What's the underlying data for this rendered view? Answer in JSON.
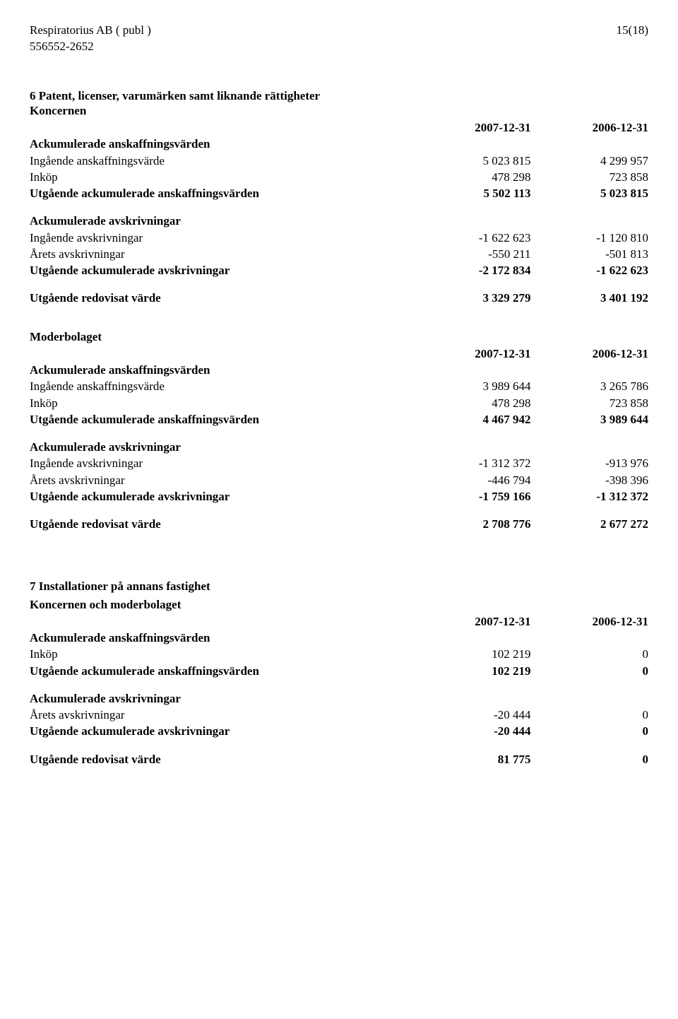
{
  "header": {
    "company_name": "Respiratorius AB ( publ )",
    "org_number": "556552-2652",
    "page_number": "15(18)"
  },
  "sections": [
    {
      "title": "6 Patent, licenser, varumärken samt liknande rättigheter",
      "groups": [
        {
          "unit_label": "Koncernen",
          "col1_header": "2007-12-31",
          "col2_header": "2006-12-31",
          "blocks": [
            {
              "heading": "Ackumulerade anskaffningsvärden",
              "rows": [
                {
                  "label": "Ingående anskaffningsvärde",
                  "c1": "5 023 815",
                  "c2": "4 299 957",
                  "bold": false
                },
                {
                  "label": "Inköp",
                  "c1": "478 298",
                  "c2": "723 858",
                  "bold": false
                },
                {
                  "label": "Utgående ackumulerade anskaffningsvärden",
                  "c1": "5 502 113",
                  "c2": "5 023 815",
                  "bold": true
                }
              ]
            },
            {
              "heading": "Ackumulerade avskrivningar",
              "rows": [
                {
                  "label": "Ingående avskrivningar",
                  "c1": "-1 622 623",
                  "c2": "-1 120 810",
                  "bold": false
                },
                {
                  "label": "Årets avskrivningar",
                  "c1": "-550 211",
                  "c2": "-501 813",
                  "bold": false
                },
                {
                  "label": "Utgående ackumulerade avskrivningar",
                  "c1": "-2 172 834",
                  "c2": "-1 622 623",
                  "bold": true
                }
              ]
            }
          ],
          "total": {
            "label": "Utgående redovisat värde",
            "c1": "3 329 279",
            "c2": "3 401 192"
          }
        },
        {
          "unit_label": "Moderbolaget",
          "col1_header": "2007-12-31",
          "col2_header": "2006-12-31",
          "blocks": [
            {
              "heading": "Ackumulerade anskaffningsvärden",
              "rows": [
                {
                  "label": "Ingående anskaffningsvärde",
                  "c1": "3 989 644",
                  "c2": "3 265 786",
                  "bold": false
                },
                {
                  "label": "Inköp",
                  "c1": "478 298",
                  "c2": "723 858",
                  "bold": false
                },
                {
                  "label": "Utgående ackumulerade anskaffningsvärden",
                  "c1": "4 467 942",
                  "c2": "3 989 644",
                  "bold": true
                }
              ]
            },
            {
              "heading": "Ackumulerade avskrivningar",
              "rows": [
                {
                  "label": "Ingående avskrivningar",
                  "c1": "-1 312 372",
                  "c2": "-913 976",
                  "bold": false
                },
                {
                  "label": "Årets avskrivningar",
                  "c1": "-446 794",
                  "c2": "-398 396",
                  "bold": false
                },
                {
                  "label": "Utgående ackumulerade avskrivningar",
                  "c1": "-1 759 166",
                  "c2": "-1 312 372",
                  "bold": true
                }
              ]
            }
          ],
          "total": {
            "label": "Utgående redovisat värde",
            "c1": "2 708 776",
            "c2": "2 677 272"
          }
        }
      ]
    },
    {
      "title": "7 Installationer på annans fastighet",
      "groups": [
        {
          "unit_label": "Koncernen och moderbolaget",
          "col1_header": "2007-12-31",
          "col2_header": "2006-12-31",
          "blocks": [
            {
              "heading": "Ackumulerade anskaffningsvärden",
              "rows": [
                {
                  "label": "Inköp",
                  "c1": "102 219",
                  "c2": "0",
                  "bold": false
                },
                {
                  "label": "Utgående ackumulerade anskaffningsvärden",
                  "c1": "102 219",
                  "c2": "0",
                  "bold": true
                }
              ]
            },
            {
              "heading": "Ackumulerade avskrivningar",
              "rows": [
                {
                  "label": "Årets avskrivningar",
                  "c1": "-20 444",
                  "c2": "0",
                  "bold": false
                },
                {
                  "label": "Utgående ackumulerade avskrivningar",
                  "c1": "-20 444",
                  "c2": "0",
                  "bold": true
                }
              ]
            }
          ],
          "total": {
            "label": "Utgående redovisat värde",
            "c1": "81 775",
            "c2": "0"
          }
        }
      ]
    }
  ]
}
